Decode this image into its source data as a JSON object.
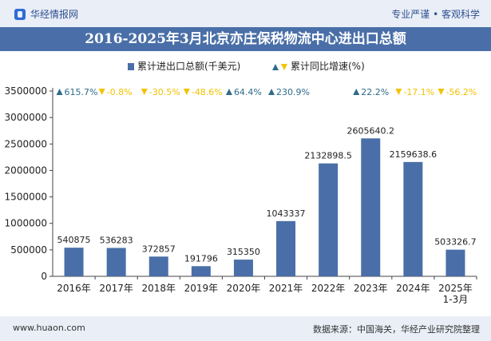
{
  "header": {
    "brand": "华经情报网",
    "tagline": "专业严谨 • 客观科学"
  },
  "title": "2016-2025年3月北京亦庄保税物流中心进出口总额",
  "legend": {
    "bar_label": "累计进出口总额(千美元)",
    "growth_label": "累计同比增速(%)"
  },
  "colors": {
    "bar": "#4a6fa8",
    "up": "#2f6b8a",
    "down": "#f2c200",
    "background": "#ffffff",
    "bands": "#e9eef7"
  },
  "footer": {
    "site": "www.huaon.com",
    "source": "数据来源：中国海关，华经产业研究院整理"
  },
  "chart_data": {
    "type": "bar",
    "categories": [
      "2016年",
      "2017年",
      "2018年",
      "2019年",
      "2020年",
      "2021年",
      "2022年",
      "2023年",
      "2024年",
      "2025年\n1-3月"
    ],
    "series": [
      {
        "name": "累计进出口总额(千美元)",
        "values": [
          540875,
          536283,
          372857,
          191796,
          315350,
          1043337,
          2132898.5,
          2605640.2,
          2159638.6,
          503326.7
        ]
      }
    ],
    "value_labels": [
      "540875",
      "536283",
      "372857",
      "191796",
      "315350",
      "1043337",
      "2132898.5",
      "2605640.2",
      "2159638.6",
      "503326.7"
    ],
    "growth": [
      {
        "text": "615.7%",
        "dir": "up"
      },
      {
        "text": "-0.8%",
        "dir": "down"
      },
      {
        "text": "-30.5%",
        "dir": "down"
      },
      {
        "text": "-48.6%",
        "dir": "down"
      },
      {
        "text": "64.4%",
        "dir": "up"
      },
      {
        "text": "230.9%",
        "dir": "up"
      },
      {
        "text": "",
        "dir": ""
      },
      {
        "text": "22.2%",
        "dir": "up"
      },
      {
        "text": "-17.1%",
        "dir": "down"
      },
      {
        "text": "-56.2%",
        "dir": "down"
      }
    ],
    "yticks": [
      0,
      500000,
      1000000,
      1500000,
      2000000,
      2500000,
      3000000,
      3500000
    ],
    "ylim": [
      0,
      3500000
    ],
    "grid": false,
    "legend_position": "top-center"
  }
}
